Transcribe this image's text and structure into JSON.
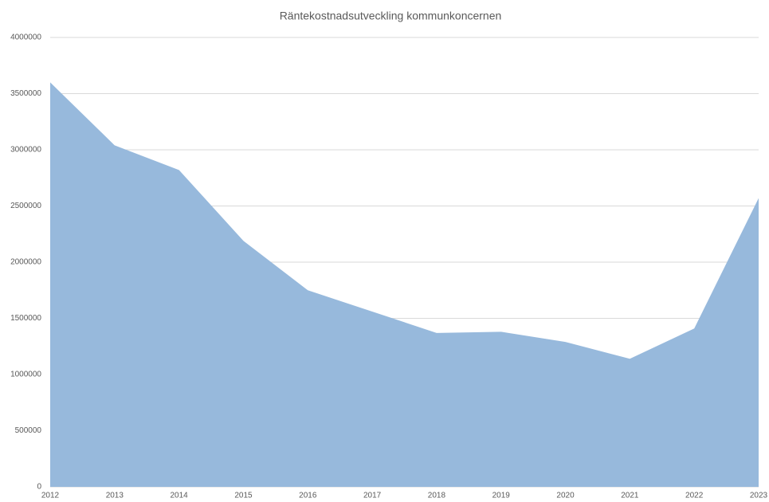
{
  "chart_data": {
    "type": "area",
    "title": "Räntekostnadsutveckling kommunkoncernen",
    "categories": [
      "2012",
      "2013",
      "2014",
      "2015",
      "2016",
      "2017",
      "2018",
      "2019",
      "2020",
      "2021",
      "2022",
      "2023"
    ],
    "values": [
      3600000,
      3040000,
      2820000,
      2190000,
      1750000,
      1560000,
      1370000,
      1380000,
      1290000,
      1140000,
      1410000,
      2570000
    ],
    "color": "#97b9dc",
    "ylim": [
      0,
      4000000
    ],
    "yticks": [
      0,
      500000,
      1000000,
      1500000,
      2000000,
      2500000,
      3000000,
      3500000,
      4000000
    ],
    "grid": true
  }
}
